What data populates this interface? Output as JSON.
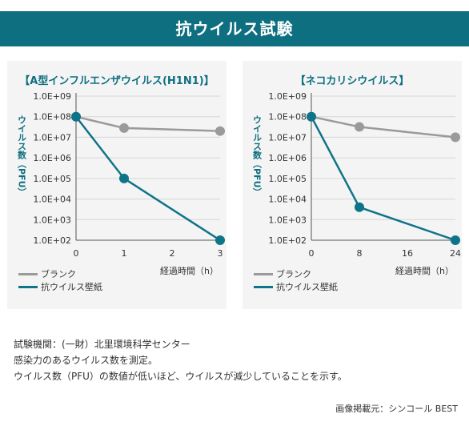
{
  "header": {
    "title": "抗ウイルス試験"
  },
  "colors": {
    "brand": "#0e6f80",
    "blank": "#9a9a9a",
    "antiviral": "#0e7487"
  },
  "chart_data": [
    {
      "type": "line",
      "title": "【A型インフルエンザウイルス(H1N1)】",
      "xlabel": "経過時間（h）",
      "ylabel": "ウイルス数（PFU）",
      "x": [
        0,
        1,
        2,
        3
      ],
      "x_ticks": [
        "0",
        "1",
        "2",
        "3"
      ],
      "y_ticks": [
        "1.0E+02",
        "1.0E+03",
        "1.0E+04",
        "1.0E+05",
        "1.0E+06",
        "1.0E+07",
        "1.0E+08",
        "1.0E+09"
      ],
      "y_scale": "log",
      "ylim": [
        100,
        1000000000
      ],
      "series": [
        {
          "name": "ブランク",
          "x": [
            0,
            1,
            3
          ],
          "values": [
            100000000,
            28000000,
            20000000
          ]
        },
        {
          "name": "抗ウイルス壁紙",
          "x": [
            0,
            1,
            3
          ],
          "values": [
            100000000,
            100000,
            100
          ]
        }
      ],
      "legend": "bottom-left"
    },
    {
      "type": "line",
      "title": "【ネコカリシウイルス】",
      "xlabel": "経過時間（h）",
      "ylabel": "ウイルス数（PFU）",
      "x": [
        0,
        8,
        16,
        24
      ],
      "x_ticks": [
        "0",
        "8",
        "16",
        "24"
      ],
      "y_ticks": [
        "1.0E+02",
        "1.0E+03",
        "1.0E+04",
        "1.0E+05",
        "1.0E+06",
        "1.0E+07",
        "1.0E+08",
        "1.0E+09"
      ],
      "y_scale": "log",
      "ylim": [
        100,
        1000000000
      ],
      "series": [
        {
          "name": "ブランク",
          "x": [
            0,
            8,
            24
          ],
          "values": [
            100000000,
            32000000,
            10000000
          ]
        },
        {
          "name": "抗ウイルス壁紙",
          "x": [
            0,
            8,
            24
          ],
          "values": [
            100000000,
            4000,
            100
          ]
        }
      ],
      "legend": "bottom-left"
    }
  ],
  "notes": {
    "line1": "試験機関：(一財）北里環境科学センター",
    "line2": "感染力のあるウイルス数を測定。",
    "line3": "ウイルス数（PFU）の数値が低いほど、ウイルスが減少していることを示す。"
  },
  "credit": "画像掲載元：シンコール BEST"
}
